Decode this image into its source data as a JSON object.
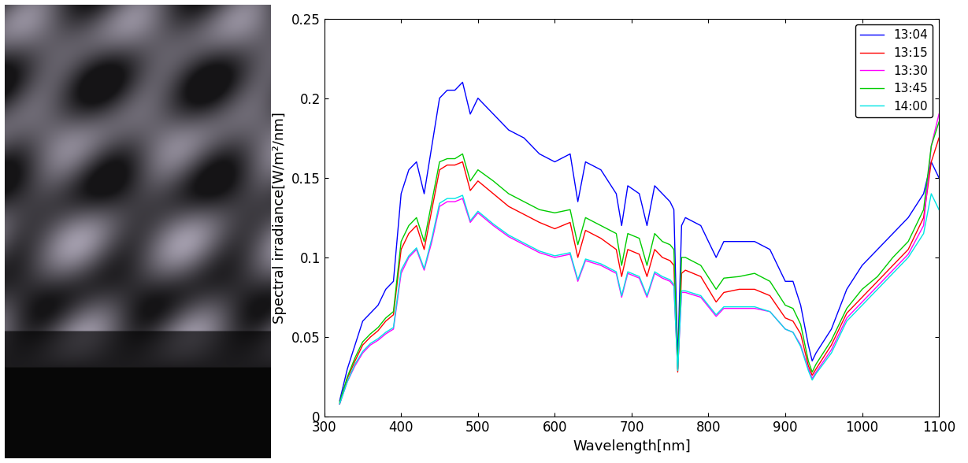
{
  "chart_data": {
    "type": "line",
    "xlabel": "Wavelength[nm]",
    "ylabel": "Spectral irradiance[W/m²/nm]",
    "x": [
      320,
      330,
      340,
      350,
      360,
      370,
      380,
      390,
      400,
      410,
      420,
      430,
      440,
      450,
      460,
      470,
      480,
      490,
      500,
      520,
      540,
      560,
      580,
      600,
      620,
      630,
      640,
      660,
      680,
      687,
      695,
      710,
      720,
      730,
      740,
      750,
      755,
      760,
      765,
      770,
      790,
      810,
      820,
      840,
      860,
      880,
      900,
      910,
      920,
      930,
      935,
      940,
      960,
      980,
      1000,
      1020,
      1040,
      1060,
      1080,
      1090,
      1100
    ],
    "xlim": [
      300,
      1100
    ],
    "xticks": [
      300,
      400,
      500,
      600,
      700,
      800,
      900,
      1000,
      1100
    ],
    "ylim": [
      0,
      0.25
    ],
    "yticks": [
      0,
      0.05,
      0.1,
      0.15,
      0.2,
      0.25
    ],
    "grid": false,
    "legend": "upper right",
    "series": [
      {
        "name": "13:04",
        "color": "#0000ff",
        "values": [
          0.01,
          0.03,
          0.045,
          0.06,
          0.065,
          0.07,
          0.08,
          0.085,
          0.14,
          0.155,
          0.16,
          0.14,
          0.17,
          0.2,
          0.205,
          0.205,
          0.21,
          0.19,
          0.2,
          0.19,
          0.18,
          0.175,
          0.165,
          0.16,
          0.165,
          0.135,
          0.16,
          0.155,
          0.14,
          0.12,
          0.145,
          0.14,
          0.12,
          0.145,
          0.14,
          0.135,
          0.13,
          0.035,
          0.12,
          0.125,
          0.12,
          0.1,
          0.11,
          0.11,
          0.11,
          0.105,
          0.085,
          0.085,
          0.07,
          0.045,
          0.035,
          0.04,
          0.055,
          0.08,
          0.095,
          0.105,
          0.115,
          0.125,
          0.14,
          0.16,
          0.15
        ]
      },
      {
        "name": "13:15",
        "color": "#ff0000",
        "values": [
          0.008,
          0.024,
          0.035,
          0.045,
          0.05,
          0.054,
          0.06,
          0.064,
          0.105,
          0.115,
          0.12,
          0.105,
          0.13,
          0.155,
          0.158,
          0.158,
          0.16,
          0.142,
          0.148,
          0.14,
          0.132,
          0.127,
          0.122,
          0.118,
          0.122,
          0.1,
          0.117,
          0.112,
          0.105,
          0.088,
          0.105,
          0.102,
          0.088,
          0.105,
          0.1,
          0.098,
          0.095,
          0.028,
          0.09,
          0.092,
          0.088,
          0.072,
          0.078,
          0.08,
          0.08,
          0.076,
          0.062,
          0.06,
          0.052,
          0.032,
          0.026,
          0.03,
          0.045,
          0.065,
          0.075,
          0.085,
          0.095,
          0.105,
          0.125,
          0.16,
          0.175
        ]
      },
      {
        "name": "13:30",
        "color": "#ff00ff",
        "values": [
          0.008,
          0.022,
          0.032,
          0.04,
          0.045,
          0.048,
          0.052,
          0.055,
          0.09,
          0.1,
          0.105,
          0.092,
          0.11,
          0.132,
          0.135,
          0.135,
          0.137,
          0.122,
          0.128,
          0.12,
          0.113,
          0.108,
          0.103,
          0.1,
          0.102,
          0.085,
          0.098,
          0.095,
          0.09,
          0.075,
          0.09,
          0.087,
          0.075,
          0.09,
          0.087,
          0.085,
          0.082,
          0.03,
          0.078,
          0.078,
          0.075,
          0.063,
          0.068,
          0.068,
          0.068,
          0.066,
          0.055,
          0.053,
          0.045,
          0.03,
          0.024,
          0.028,
          0.042,
          0.062,
          0.072,
          0.082,
          0.092,
          0.102,
          0.12,
          0.17,
          0.19
        ]
      },
      {
        "name": "13:45",
        "color": "#00cc00",
        "values": [
          0.009,
          0.025,
          0.037,
          0.047,
          0.052,
          0.056,
          0.062,
          0.066,
          0.11,
          0.12,
          0.125,
          0.11,
          0.135,
          0.16,
          0.162,
          0.162,
          0.165,
          0.148,
          0.155,
          0.148,
          0.14,
          0.135,
          0.13,
          0.128,
          0.13,
          0.108,
          0.125,
          0.12,
          0.115,
          0.095,
          0.115,
          0.112,
          0.095,
          0.115,
          0.11,
          0.108,
          0.105,
          0.03,
          0.1,
          0.1,
          0.095,
          0.08,
          0.087,
          0.088,
          0.09,
          0.085,
          0.07,
          0.068,
          0.058,
          0.035,
          0.028,
          0.033,
          0.048,
          0.068,
          0.08,
          0.088,
          0.1,
          0.11,
          0.13,
          0.17,
          0.185
        ]
      },
      {
        "name": "14:00",
        "color": "#00e5e5",
        "values": [
          0.008,
          0.022,
          0.033,
          0.041,
          0.046,
          0.049,
          0.053,
          0.056,
          0.092,
          0.101,
          0.106,
          0.093,
          0.112,
          0.134,
          0.137,
          0.137,
          0.139,
          0.123,
          0.129,
          0.121,
          0.114,
          0.109,
          0.104,
          0.101,
          0.103,
          0.086,
          0.099,
          0.096,
          0.091,
          0.076,
          0.091,
          0.088,
          0.076,
          0.091,
          0.088,
          0.086,
          0.083,
          0.029,
          0.079,
          0.079,
          0.076,
          0.064,
          0.069,
          0.069,
          0.069,
          0.066,
          0.055,
          0.053,
          0.044,
          0.029,
          0.023,
          0.027,
          0.04,
          0.06,
          0.07,
          0.08,
          0.09,
          0.1,
          0.115,
          0.14,
          0.13
        ]
      }
    ]
  }
}
